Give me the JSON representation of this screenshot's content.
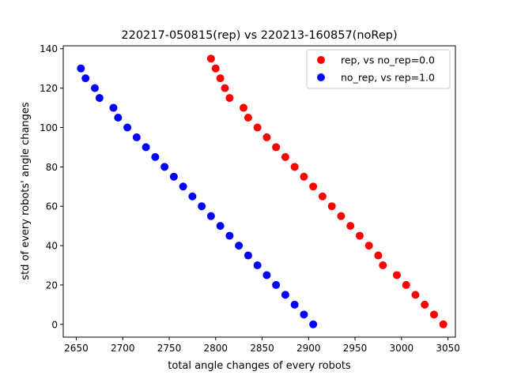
{
  "chart_data": {
    "type": "scatter",
    "title": "220217-050815(rep) vs 220213-160857(noRep)",
    "xlabel": "total angle changes of every robots",
    "ylabel": "std of every robots' angle changes",
    "xlim": [
      2636,
      3058
    ],
    "ylim": [
      -6.5,
      141.5
    ],
    "xticks": [
      2650,
      2700,
      2750,
      2800,
      2850,
      2900,
      2950,
      3000,
      3050
    ],
    "yticks": [
      0,
      20,
      40,
      60,
      80,
      100,
      120,
      140
    ],
    "grid": false,
    "legend_position": "top-right",
    "series": [
      {
        "name": "rep, vs no_rep=0.0",
        "color": "#ff0000",
        "points": [
          [
            2795,
            135
          ],
          [
            2800,
            130
          ],
          [
            2805,
            125
          ],
          [
            2810,
            120
          ],
          [
            2815,
            115
          ],
          [
            2830,
            110
          ],
          [
            2835,
            105
          ],
          [
            2845,
            100
          ],
          [
            2855,
            95
          ],
          [
            2865,
            90
          ],
          [
            2875,
            85
          ],
          [
            2885,
            80
          ],
          [
            2895,
            75
          ],
          [
            2905,
            70
          ],
          [
            2915,
            65
          ],
          [
            2925,
            60
          ],
          [
            2935,
            55
          ],
          [
            2945,
            50
          ],
          [
            2955,
            45
          ],
          [
            2965,
            40
          ],
          [
            2975,
            35
          ],
          [
            2980,
            30
          ],
          [
            2995,
            25
          ],
          [
            3005,
            20
          ],
          [
            3015,
            15
          ],
          [
            3025,
            10
          ],
          [
            3035,
            5
          ],
          [
            3045,
            0
          ]
        ]
      },
      {
        "name": "no_rep, vs rep=1.0",
        "color": "#0000ff",
        "points": [
          [
            2655,
            130
          ],
          [
            2660,
            125
          ],
          [
            2670,
            120
          ],
          [
            2675,
            115
          ],
          [
            2690,
            110
          ],
          [
            2695,
            105
          ],
          [
            2705,
            100
          ],
          [
            2715,
            95
          ],
          [
            2725,
            90
          ],
          [
            2735,
            85
          ],
          [
            2745,
            80
          ],
          [
            2755,
            75
          ],
          [
            2765,
            70
          ],
          [
            2775,
            65
          ],
          [
            2785,
            60
          ],
          [
            2795,
            55
          ],
          [
            2805,
            50
          ],
          [
            2815,
            45
          ],
          [
            2825,
            40
          ],
          [
            2835,
            35
          ],
          [
            2845,
            30
          ],
          [
            2855,
            25
          ],
          [
            2865,
            20
          ],
          [
            2875,
            15
          ],
          [
            2885,
            10
          ],
          [
            2895,
            5
          ],
          [
            2905,
            0
          ]
        ]
      }
    ]
  }
}
